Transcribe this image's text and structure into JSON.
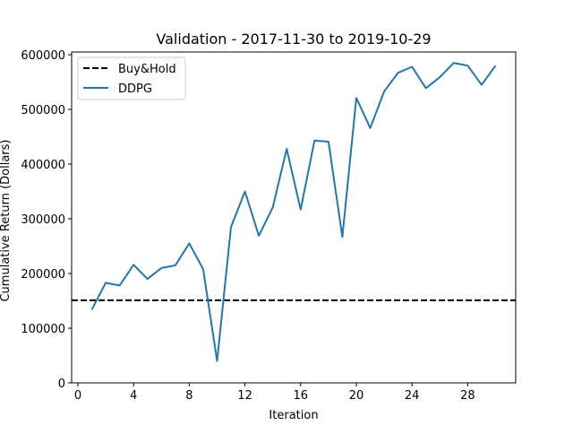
{
  "chart_data": {
    "type": "line",
    "title": "Validation - 2017-11-30 to 2019-10-29",
    "xlabel": "Iteration",
    "ylabel": "Cumulative Return (Dollars)",
    "xlim": [
      -0.45,
      31.45
    ],
    "ylim": [
      0,
      605000
    ],
    "xticks": [
      0,
      4,
      8,
      12,
      16,
      20,
      24,
      28
    ],
    "yticks": [
      0,
      100000,
      200000,
      300000,
      400000,
      500000,
      600000
    ],
    "xtick_labels": [
      "0",
      "4",
      "8",
      "12",
      "16",
      "20",
      "24",
      "28"
    ],
    "ytick_labels": [
      "0",
      "100000",
      "200000",
      "300000",
      "400000",
      "500000",
      "600000"
    ],
    "legend_position": "top-left",
    "grid": false,
    "reference_line": {
      "name": "Buy&Hold",
      "y": 151000,
      "color": "#000000",
      "style": "dashed"
    },
    "series": [
      {
        "name": "DDPG",
        "color": "#1f77b4",
        "x": [
          1,
          2,
          3,
          4,
          5,
          6,
          7,
          8,
          9,
          10,
          11,
          12,
          13,
          14,
          15,
          16,
          17,
          18,
          19,
          20,
          21,
          22,
          23,
          24,
          25,
          26,
          27,
          28,
          29,
          30
        ],
        "values": [
          134000,
          183000,
          178000,
          216000,
          190000,
          210000,
          215000,
          255000,
          208000,
          40000,
          285000,
          350000,
          269000,
          321000,
          428000,
          317000,
          443000,
          441000,
          267000,
          521000,
          466000,
          533000,
          567000,
          578000,
          539000,
          559000,
          585000,
          580000,
          545000,
          580000
        ]
      }
    ]
  }
}
